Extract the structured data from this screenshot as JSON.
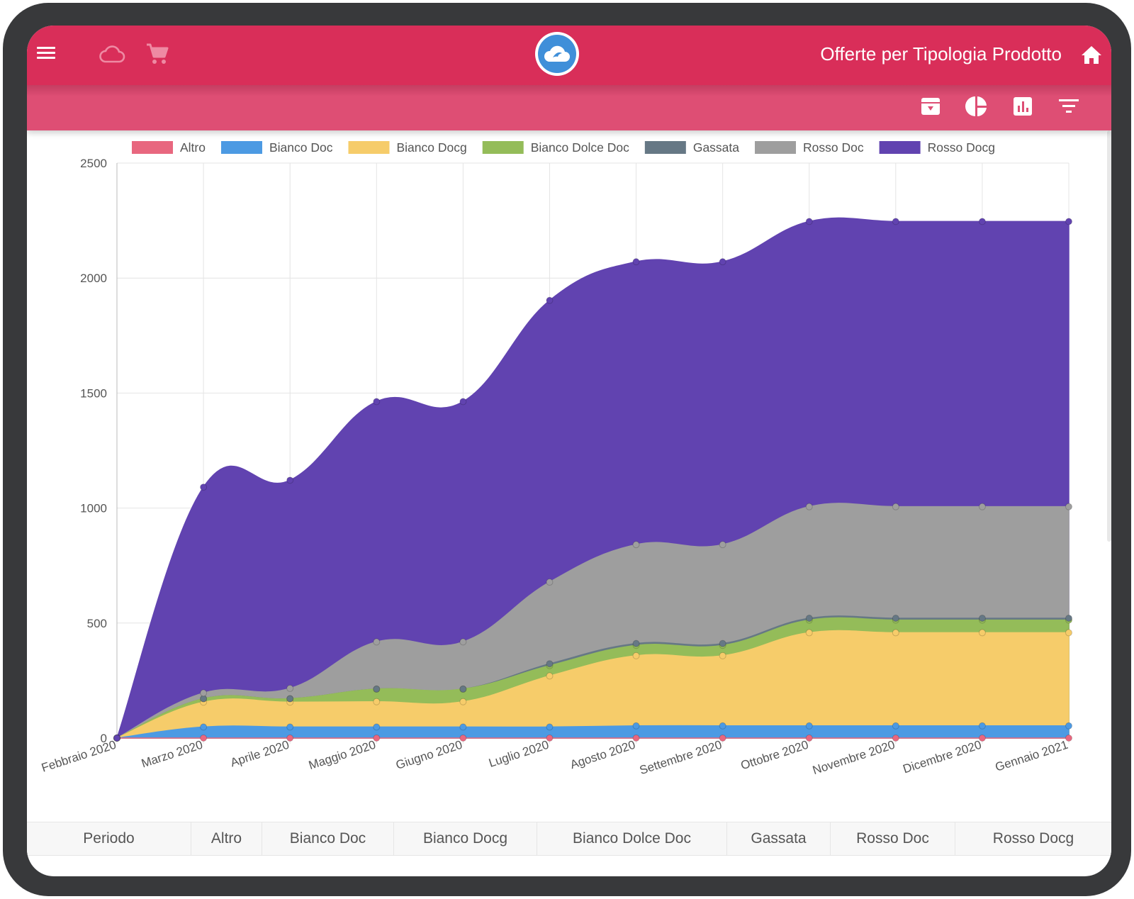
{
  "header": {
    "title": "Offerte per Tipologia Prodotto",
    "icons": {
      "menu": "menu-icon",
      "cloud": "cloud-icon",
      "cart": "cart-icon",
      "logo": "app-logo",
      "home": "home-icon"
    }
  },
  "toolbar": {
    "icons": [
      "archive-download-icon",
      "pie-chart-icon",
      "bar-chart-icon",
      "filter-icon"
    ]
  },
  "colors": {
    "header": "#d92e59",
    "subheader": "#de4e74",
    "series": {
      "Altro": "#e8677f",
      "Bianco Doc": "#4c9ae3",
      "Bianco Docg": "#f6cc6a",
      "Bianco Dolce Doc": "#94bc59",
      "Gassata": "#667885",
      "Rosso Doc": "#9e9e9e",
      "Rosso Docg": "#6143b0"
    }
  },
  "chart_data": {
    "type": "area",
    "stacked": true,
    "legend_position": "top",
    "grid": true,
    "categories": [
      "Febbraio 2020",
      "Marzo 2020",
      "Aprile 2020",
      "Maggio 2020",
      "Giugno 2020",
      "Luglio 2020",
      "Agosto 2020",
      "Settembre 2020",
      "Ottobre 2020",
      "Novembre 2020",
      "Dicembre 2020",
      "Gennaio 2021"
    ],
    "ylim": [
      0,
      2500
    ],
    "yticks": [
      0,
      500,
      1000,
      1500,
      2000,
      2500
    ],
    "series": [
      {
        "name": "Altro",
        "values": [
          0,
          0,
          0,
          0,
          0,
          0,
          0,
          0,
          0,
          0,
          0,
          0
        ]
      },
      {
        "name": "Bianco Doc",
        "values": [
          0,
          48,
          48,
          48,
          48,
          48,
          53,
          53,
          53,
          53,
          53,
          53
        ]
      },
      {
        "name": "Bianco Docg",
        "values": [
          0,
          108,
          108,
          110,
          110,
          222,
          305,
          305,
          405,
          405,
          405,
          405
        ]
      },
      {
        "name": "Bianco Dolce Doc",
        "values": [
          0,
          15,
          15,
          55,
          55,
          45,
          45,
          45,
          55,
          55,
          55,
          55
        ]
      },
      {
        "name": "Gassata",
        "values": [
          0,
          0,
          0,
          0,
          0,
          8,
          8,
          8,
          8,
          8,
          8,
          8
        ]
      },
      {
        "name": "Rosso Doc",
        "values": [
          0,
          25,
          45,
          205,
          205,
          355,
          430,
          430,
          485,
          485,
          485,
          485
        ]
      },
      {
        "name": "Rosso Docg",
        "values": [
          0,
          895,
          905,
          1045,
          1045,
          1225,
          1230,
          1230,
          1240,
          1240,
          1240,
          1240
        ]
      }
    ]
  },
  "table": {
    "columns": [
      "Periodo",
      "Altro",
      "Bianco Doc",
      "Bianco Docg",
      "Bianco Dolce Doc",
      "Gassata",
      "Rosso Doc",
      "Rosso Docg"
    ]
  }
}
